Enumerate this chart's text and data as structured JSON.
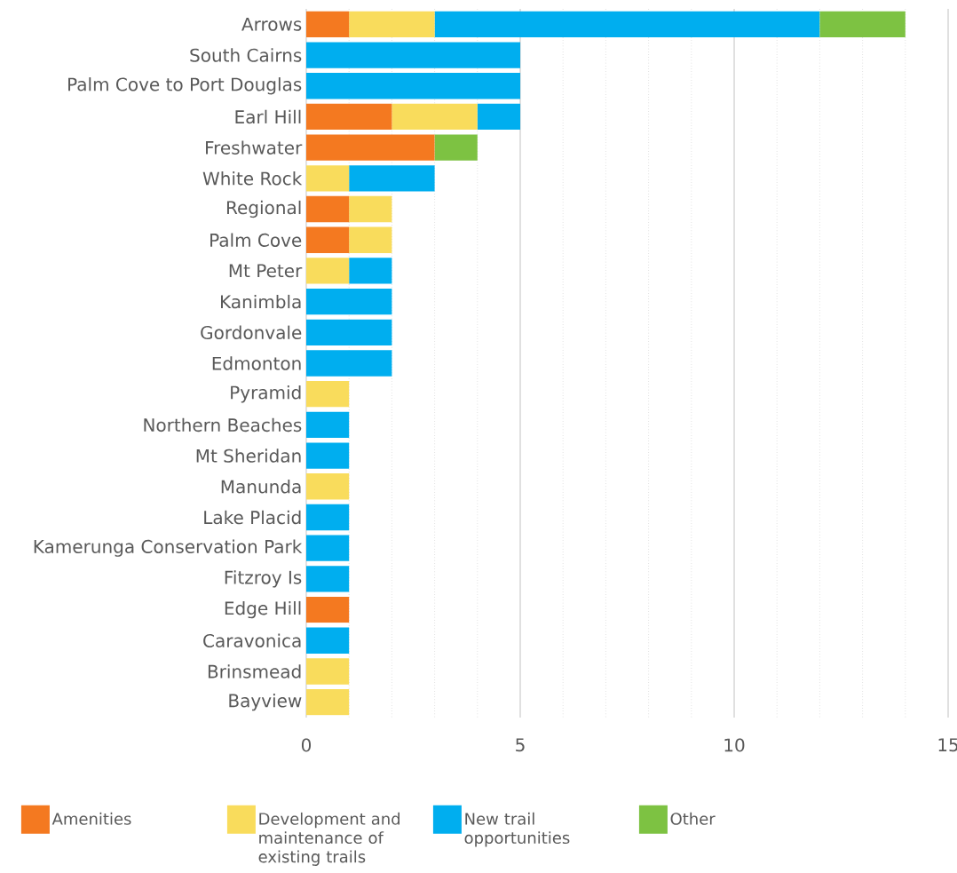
{
  "chart_data": {
    "type": "bar",
    "orientation": "horizontal",
    "stacked": true,
    "grid": "x",
    "legend": "bottom",
    "categories": [
      "Arrows",
      "South Cairns",
      "Palm Cove to Port Douglas",
      "Earl Hill",
      "Freshwater",
      "White Rock",
      "Regional",
      "Palm Cove",
      "Mt Peter",
      "Kanimbla",
      "Gordonvale",
      "Edmonton",
      "Pyramid",
      "Northern Beaches",
      "Mt Sheridan",
      "Manunda",
      "Lake Placid",
      "Kamerunga Conservation Park",
      "Fitzroy Is",
      "Edge Hill",
      "Caravonica",
      "Brinsmead",
      "Bayview"
    ],
    "xlim": [
      0,
      15
    ],
    "xticks": [
      0,
      5,
      10,
      15
    ],
    "series": [
      {
        "name": "Amenities",
        "color": "#f47920",
        "values": [
          1,
          0,
          0,
          2,
          3,
          0,
          1,
          1,
          0,
          0,
          0,
          0,
          0,
          0,
          0,
          0,
          0,
          0,
          0,
          1,
          0,
          0,
          0
        ]
      },
      {
        "name": "Development and maintenance of existing trails",
        "color": "#f9dc5c",
        "values": [
          2,
          0,
          0,
          2,
          0,
          1,
          1,
          1,
          1,
          0,
          0,
          0,
          1,
          0,
          0,
          1,
          0,
          0,
          0,
          0,
          0,
          1,
          1
        ]
      },
      {
        "name": "New trail opportunities",
        "color": "#00aeef",
        "values": [
          9,
          5,
          5,
          1,
          0,
          2,
          0,
          0,
          1,
          2,
          2,
          2,
          0,
          1,
          1,
          0,
          1,
          1,
          1,
          0,
          1,
          0,
          0
        ]
      },
      {
        "name": "Other",
        "color": "#7dc242",
        "values": [
          2,
          0,
          0,
          0,
          1,
          0,
          0,
          0,
          0,
          0,
          0,
          0,
          0,
          0,
          0,
          0,
          0,
          0,
          0,
          0,
          0,
          0,
          0
        ]
      }
    ]
  }
}
